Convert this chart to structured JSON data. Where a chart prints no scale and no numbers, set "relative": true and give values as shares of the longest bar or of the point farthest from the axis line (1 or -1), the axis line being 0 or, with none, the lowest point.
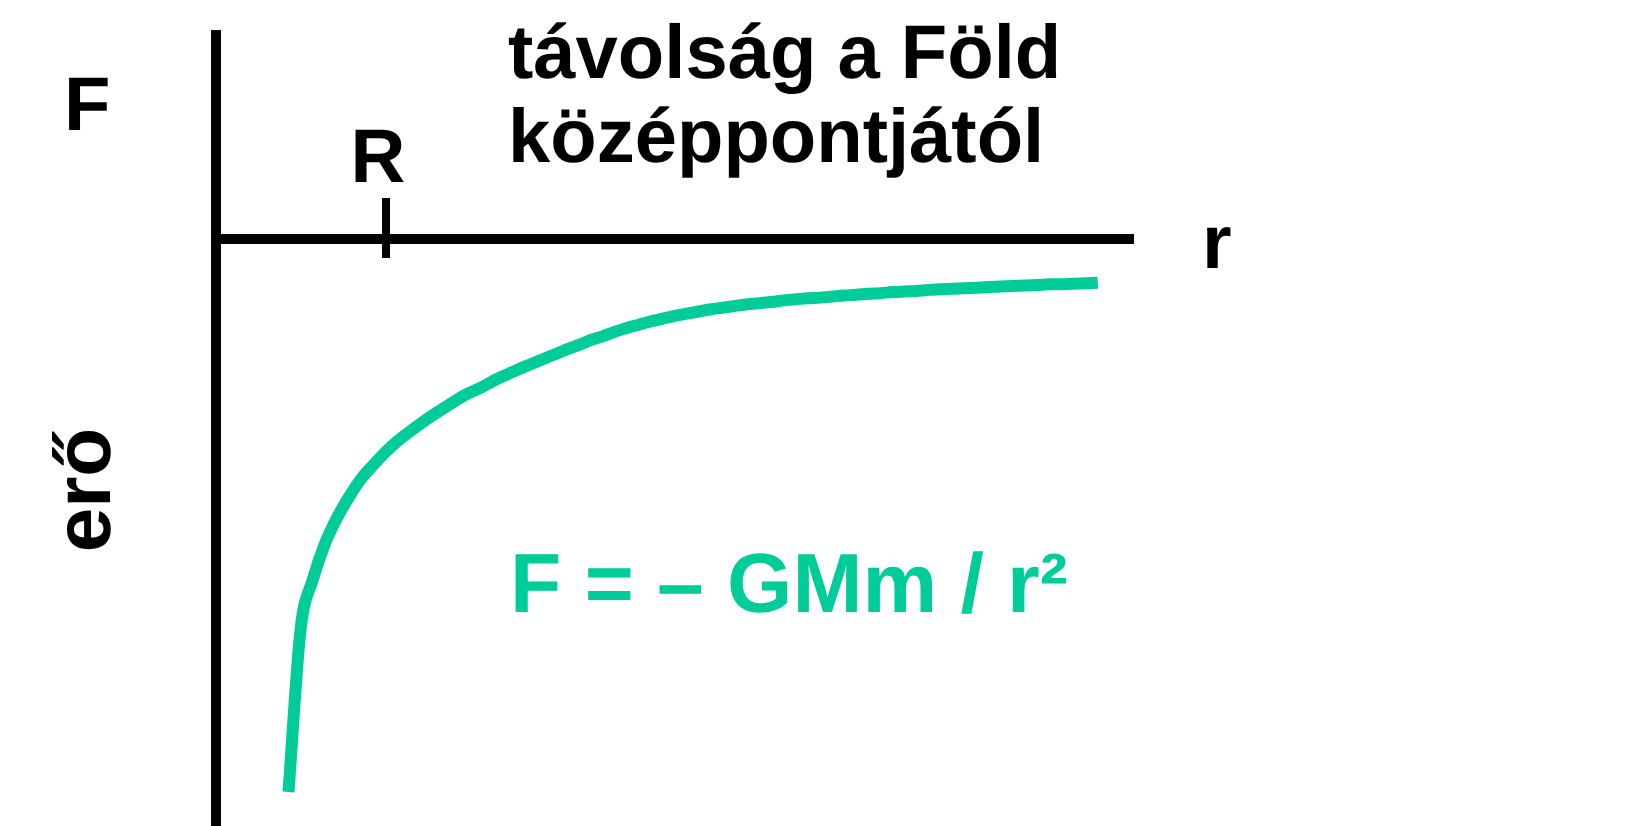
{
  "chart_data": {
    "type": "line",
    "xlabel": "távolság a Föld középpontjától",
    "ylabel": "erő",
    "annotations": [
      "F",
      "R",
      "r"
    ],
    "relative": true,
    "categories": [
      null,
      null,
      null,
      null,
      null,
      null,
      null,
      null,
      null,
      null,
      null,
      null,
      null,
      null,
      null,
      null,
      null,
      null,
      null,
      null,
      null,
      null,
      null,
      null,
      null,
      null,
      null,
      null,
      null,
      null,
      null,
      null,
      null,
      null,
      null,
      null,
      null,
      null,
      null,
      null,
      null,
      null,
      null,
      null,
      null,
      null,
      null,
      null,
      null,
      null,
      null,
      null,
      null,
      null,
      null,
      null,
      null,
      null,
      null,
      null,
      null,
      null,
      null,
      null,
      null,
      null,
      null,
      null,
      null,
      null,
      null,
      null,
      null,
      null,
      null,
      null,
      null
    ],
    "series": [
      {
        "name": "F = – GMm / r²",
        "color": "#00cc99",
        "values": [
          null,
          null,
          null,
          null,
          null,
          null,
          -1,
          -0.706,
          -0.617,
          -0.552,
          -0.505,
          -0.467,
          -0.434,
          -0.409,
          -0.386,
          -0.366,
          -0.349,
          -0.333,
          -0.318,
          -0.304,
          -0.29,
          -0.278,
          -0.268,
          -0.256,
          -0.246,
          -0.236,
          -0.227,
          -0.218,
          -0.209,
          -0.2,
          -0.192,
          -0.183,
          -0.176,
          -0.168,
          -0.161,
          -0.155,
          -0.149,
          -0.144,
          -0.139,
          -0.135,
          -0.131,
          -0.127,
          -0.124,
          -0.121,
          -0.118,
          -0.116,
          -0.114,
          -0.111,
          -0.109,
          -0.107,
          -0.106,
          -0.104,
          -0.102,
          -0.101,
          -0.099,
          -0.098,
          -0.096,
          -0.095,
          -0.094,
          -0.092,
          -0.091,
          -0.09,
          -0.089,
          -0.088,
          -0.087,
          -0.086,
          -0.085,
          -0.084,
          -0.083,
          -0.082,
          -0.082,
          -0.081,
          -0.08,
          -0.079,
          null,
          null,
          null
        ]
      }
    ]
  }
}
